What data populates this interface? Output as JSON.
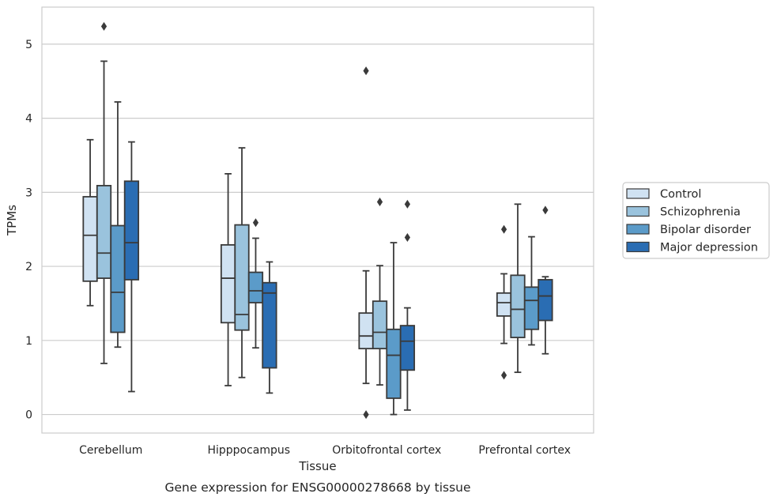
{
  "chart_data": {
    "type": "boxplot",
    "title": "",
    "caption": "Gene expression for ENSG00000278668 by tissue",
    "xlabel": "Tissue",
    "ylabel": "TPMs",
    "ylim": [
      -0.25,
      5.5
    ],
    "yticks": [
      0,
      1,
      2,
      3,
      4,
      5
    ],
    "grid": true,
    "legend_position": "right",
    "categories": [
      "Cerebellum",
      "Hipppocampus",
      "Orbitofrontal cortex",
      "Prefrontal cortex"
    ],
    "series": [
      {
        "name": "Control",
        "color": "#d0e2f2",
        "boxes": [
          {
            "whislo": 1.47,
            "q1": 1.8,
            "med": 2.42,
            "q3": 2.94,
            "whishi": 3.71,
            "fliers": []
          },
          {
            "whislo": 0.39,
            "q1": 1.24,
            "med": 1.84,
            "q3": 2.29,
            "whishi": 3.25,
            "fliers": []
          },
          {
            "whislo": 0.42,
            "q1": 0.89,
            "med": 1.06,
            "q3": 1.37,
            "whishi": 1.94,
            "fliers": [
              0.0,
              4.64
            ]
          },
          {
            "whislo": 0.96,
            "q1": 1.33,
            "med": 1.51,
            "q3": 1.64,
            "whishi": 1.9,
            "fliers": [
              0.53,
              2.5
            ]
          }
        ]
      },
      {
        "name": "Schizophrenia",
        "color": "#9ac3dd",
        "boxes": [
          {
            "whislo": 0.69,
            "q1": 1.84,
            "med": 2.18,
            "q3": 3.09,
            "whishi": 4.77,
            "fliers": [
              5.24
            ]
          },
          {
            "whislo": 0.5,
            "q1": 1.14,
            "med": 1.35,
            "q3": 2.56,
            "whishi": 3.6,
            "fliers": []
          },
          {
            "whislo": 0.4,
            "q1": 0.89,
            "med": 1.11,
            "q3": 1.53,
            "whishi": 2.01,
            "fliers": [
              2.87
            ]
          },
          {
            "whislo": 0.57,
            "q1": 1.04,
            "med": 1.42,
            "q3": 1.88,
            "whishi": 2.84,
            "fliers": []
          }
        ]
      },
      {
        "name": "Bipolar disorder",
        "color": "#5b9bc9",
        "boxes": [
          {
            "whislo": 0.91,
            "q1": 1.11,
            "med": 1.65,
            "q3": 2.55,
            "whishi": 4.22,
            "fliers": []
          },
          {
            "whislo": 0.9,
            "q1": 1.51,
            "med": 1.67,
            "q3": 1.92,
            "whishi": 2.38,
            "fliers": [
              2.59
            ]
          },
          {
            "whislo": 0.0,
            "q1": 0.22,
            "med": 0.8,
            "q3": 1.15,
            "whishi": 2.32,
            "fliers": []
          },
          {
            "whislo": 0.94,
            "q1": 1.15,
            "med": 1.54,
            "q3": 1.72,
            "whishi": 2.4,
            "fliers": []
          }
        ]
      },
      {
        "name": "Major depression",
        "color": "#2a6db3",
        "boxes": [
          {
            "whislo": 0.31,
            "q1": 1.82,
            "med": 2.32,
            "q3": 3.15,
            "whishi": 3.68,
            "fliers": []
          },
          {
            "whislo": 0.29,
            "q1": 0.63,
            "med": 1.64,
            "q3": 1.78,
            "whishi": 2.06,
            "fliers": []
          },
          {
            "whislo": 0.06,
            "q1": 0.6,
            "med": 0.99,
            "q3": 1.2,
            "whishi": 1.44,
            "fliers": [
              2.39,
              2.84
            ]
          },
          {
            "whislo": 0.82,
            "q1": 1.27,
            "med": 1.6,
            "q3": 1.82,
            "whishi": 1.86,
            "fliers": [
              2.76
            ]
          }
        ]
      }
    ]
  }
}
